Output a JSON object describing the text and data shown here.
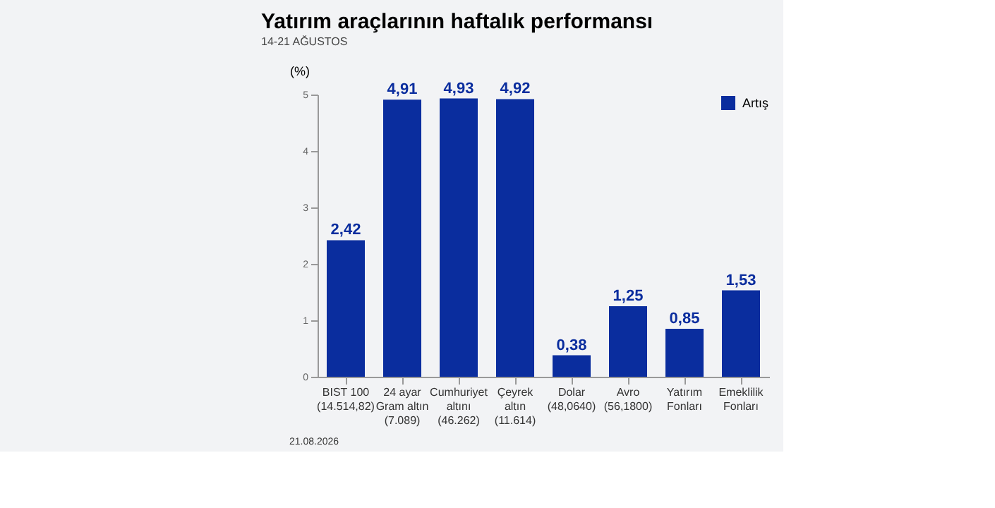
{
  "chart_data": {
    "type": "bar",
    "title": "Yatırım araçlarının haftalık performansı",
    "subtitle": "14-21 AĞUSTOS",
    "ylabel": "(%)",
    "categories": [
      "BIST 100\n(14.514,82)",
      "24 ayar\nGram altın\n(7.089)",
      "Cumhuriyet\naltını\n(46.262)",
      "Çeyrek\naltın\n(11.614)",
      "Dolar\n(48,0640)",
      "Avro\n(56,1800)",
      "Yatırım\nFonları",
      "Emeklilik\nFonları"
    ],
    "series": [
      {
        "name": "Artış",
        "color": "#0a2d9e",
        "values": [
          2.42,
          4.91,
          4.93,
          4.92,
          0.38,
          1.25,
          0.85,
          1.53
        ]
      }
    ],
    "value_labels": [
      "2,42",
      "4,91",
      "4,93",
      "4,92",
      "0,38",
      "1,25",
      "0,85",
      "1,53"
    ],
    "ylim": [
      0,
      5
    ],
    "yticks": [
      0,
      1,
      2,
      3,
      4,
      5
    ],
    "grid": false,
    "legend": "top right",
    "annotations": [
      "21.08.2026"
    ]
  }
}
